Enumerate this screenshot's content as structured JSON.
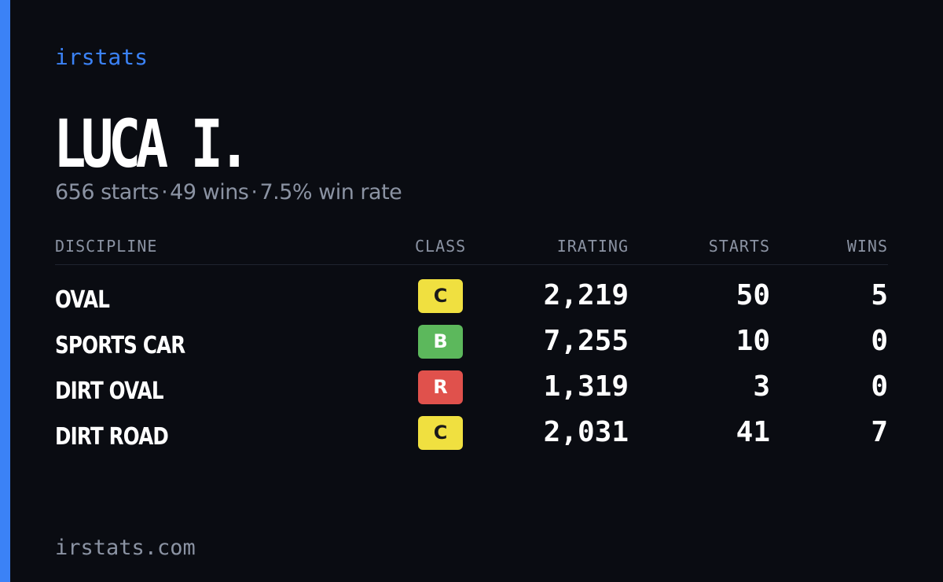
{
  "brand": "irstats",
  "driver": {
    "name": "LUCA I.",
    "starts": "656 starts",
    "wins": "49 wins",
    "win_rate": "7.5% win rate",
    "separator": "·"
  },
  "table": {
    "headers": {
      "discipline": "DISCIPLINE",
      "class": "CLASS",
      "irating": "IRATING",
      "starts": "STARTS",
      "wins": "WINS"
    },
    "rows": [
      {
        "discipline": "OVAL",
        "class": "C",
        "class_color": "#f0e040",
        "class_text": "#1a1a1a",
        "irating": "2,219",
        "starts": "50",
        "wins": "5"
      },
      {
        "discipline": "SPORTS CAR",
        "class": "B",
        "class_color": "#5cb85c",
        "class_text": "#ffffff",
        "irating": "7,255",
        "starts": "10",
        "wins": "0"
      },
      {
        "discipline": "DIRT OVAL",
        "class": "R",
        "class_color": "#e0514c",
        "class_text": "#ffffff",
        "irating": "1,319",
        "starts": "3",
        "wins": "0"
      },
      {
        "discipline": "DIRT ROAD",
        "class": "C",
        "class_color": "#f0e040",
        "class_text": "#1a1a1a",
        "irating": "2,031",
        "starts": "41",
        "wins": "7"
      }
    ]
  },
  "footer": "irstats.com",
  "colors": {
    "background": "#0a0c12",
    "accent": "#3b82f6",
    "muted": "#8b93a3"
  }
}
